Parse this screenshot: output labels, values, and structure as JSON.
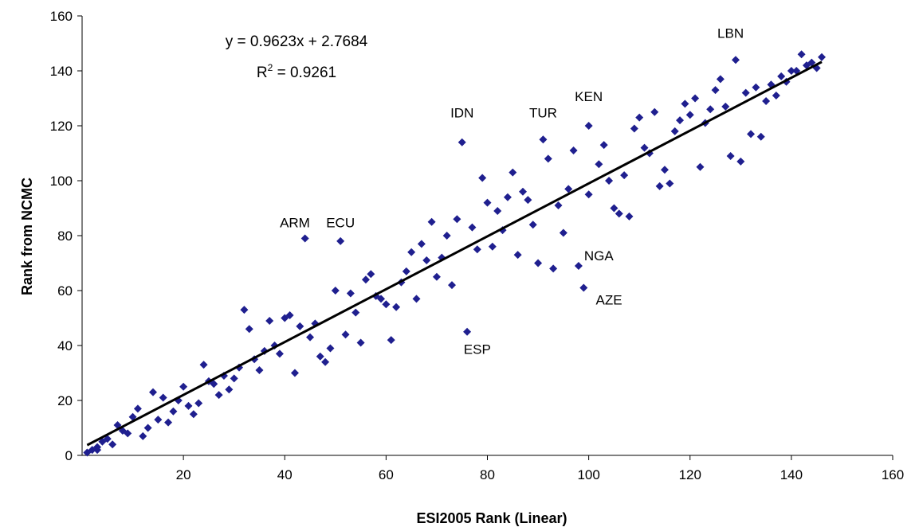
{
  "chart_data": {
    "type": "scatter",
    "title": "",
    "xlabel": "ESI2005 Rank (Linear)",
    "ylabel": "Rank from NCMC",
    "xlim": [
      0,
      160
    ],
    "ylim": [
      0,
      160
    ],
    "xticks": [
      20,
      40,
      60,
      80,
      100,
      120,
      140,
      160
    ],
    "yticks": [
      0,
      20,
      40,
      60,
      80,
      100,
      120,
      140,
      160
    ],
    "grid": false,
    "legend": "none",
    "marker_color": "#1f1f8f",
    "trendline": {
      "slope": 0.9623,
      "intercept": 2.7684,
      "equation_text": "y = 0.9623x + 2.7684",
      "r2_prefix": "R",
      "r2_sup": "2",
      "r2_value_text": " = 0.9261",
      "color": "#000000"
    },
    "annotations": [
      {
        "text": "LBN",
        "x": 128,
        "y": 152
      },
      {
        "text": "IDN",
        "x": 75,
        "y": 123
      },
      {
        "text": "TUR",
        "x": 91,
        "y": 123
      },
      {
        "text": "KEN",
        "x": 100,
        "y": 129
      },
      {
        "text": "ARM",
        "x": 42,
        "y": 83
      },
      {
        "text": "ECU",
        "x": 51,
        "y": 83
      },
      {
        "text": "NGA",
        "x": 102,
        "y": 71
      },
      {
        "text": "AZE",
        "x": 104,
        "y": 55
      },
      {
        "text": "ESP",
        "x": 78,
        "y": 37
      }
    ],
    "points": [
      [
        1,
        1
      ],
      [
        2,
        2
      ],
      [
        3,
        3
      ],
      [
        3,
        2
      ],
      [
        4,
        5
      ],
      [
        5,
        6
      ],
      [
        6,
        4
      ],
      [
        7,
        11
      ],
      [
        8,
        9
      ],
      [
        9,
        8
      ],
      [
        10,
        14
      ],
      [
        11,
        17
      ],
      [
        12,
        7
      ],
      [
        13,
        10
      ],
      [
        14,
        23
      ],
      [
        15,
        13
      ],
      [
        16,
        21
      ],
      [
        17,
        12
      ],
      [
        18,
        16
      ],
      [
        19,
        20
      ],
      [
        20,
        25
      ],
      [
        21,
        18
      ],
      [
        22,
        15
      ],
      [
        23,
        19
      ],
      [
        24,
        33
      ],
      [
        25,
        27
      ],
      [
        26,
        26
      ],
      [
        27,
        22
      ],
      [
        28,
        29
      ],
      [
        29,
        24
      ],
      [
        30,
        28
      ],
      [
        31,
        32
      ],
      [
        32,
        53
      ],
      [
        33,
        46
      ],
      [
        34,
        35
      ],
      [
        35,
        31
      ],
      [
        36,
        38
      ],
      [
        37,
        49
      ],
      [
        38,
        40
      ],
      [
        39,
        37
      ],
      [
        40,
        50
      ],
      [
        41,
        51
      ],
      [
        42,
        30
      ],
      [
        43,
        47
      ],
      [
        44,
        79
      ],
      [
        45,
        43
      ],
      [
        46,
        48
      ],
      [
        47,
        36
      ],
      [
        48,
        34
      ],
      [
        49,
        39
      ],
      [
        50,
        60
      ],
      [
        51,
        78
      ],
      [
        52,
        44
      ],
      [
        53,
        59
      ],
      [
        54,
        52
      ],
      [
        55,
        41
      ],
      [
        56,
        64
      ],
      [
        57,
        66
      ],
      [
        58,
        58
      ],
      [
        59,
        57
      ],
      [
        60,
        55
      ],
      [
        61,
        42
      ],
      [
        62,
        54
      ],
      [
        63,
        63
      ],
      [
        64,
        67
      ],
      [
        65,
        74
      ],
      [
        66,
        57
      ],
      [
        67,
        77
      ],
      [
        68,
        71
      ],
      [
        69,
        85
      ],
      [
        70,
        65
      ],
      [
        71,
        72
      ],
      [
        72,
        80
      ],
      [
        73,
        62
      ],
      [
        74,
        86
      ],
      [
        76,
        45
      ],
      [
        75,
        114
      ],
      [
        77,
        83
      ],
      [
        78,
        75
      ],
      [
        79,
        101
      ],
      [
        80,
        92
      ],
      [
        81,
        76
      ],
      [
        82,
        89
      ],
      [
        83,
        82
      ],
      [
        84,
        94
      ],
      [
        85,
        103
      ],
      [
        86,
        73
      ],
      [
        87,
        96
      ],
      [
        88,
        93
      ],
      [
        89,
        84
      ],
      [
        90,
        70
      ],
      [
        91,
        115
      ],
      [
        92,
        108
      ],
      [
        93,
        68
      ],
      [
        94,
        91
      ],
      [
        95,
        81
      ],
      [
        96,
        97
      ],
      [
        97,
        111
      ],
      [
        98,
        69
      ],
      [
        99,
        61
      ],
      [
        100,
        120
      ],
      [
        100,
        95
      ],
      [
        102,
        106
      ],
      [
        103,
        113
      ],
      [
        104,
        100
      ],
      [
        105,
        90
      ],
      [
        106,
        88
      ],
      [
        107,
        102
      ],
      [
        108,
        87
      ],
      [
        109,
        119
      ],
      [
        110,
        123
      ],
      [
        111,
        112
      ],
      [
        112,
        110
      ],
      [
        113,
        125
      ],
      [
        114,
        98
      ],
      [
        115,
        104
      ],
      [
        116,
        99
      ],
      [
        117,
        118
      ],
      [
        118,
        122
      ],
      [
        119,
        128
      ],
      [
        120,
        124
      ],
      [
        121,
        130
      ],
      [
        122,
        105
      ],
      [
        123,
        121
      ],
      [
        124,
        126
      ],
      [
        125,
        133
      ],
      [
        126,
        137
      ],
      [
        127,
        127
      ],
      [
        128,
        109
      ],
      [
        129,
        144
      ],
      [
        130,
        107
      ],
      [
        131,
        132
      ],
      [
        132,
        117
      ],
      [
        133,
        134
      ],
      [
        134,
        116
      ],
      [
        135,
        129
      ],
      [
        136,
        135
      ],
      [
        137,
        131
      ],
      [
        138,
        138
      ],
      [
        139,
        136
      ],
      [
        140,
        140
      ],
      [
        141,
        140
      ],
      [
        142,
        146
      ],
      [
        143,
        142
      ],
      [
        144,
        143
      ],
      [
        145,
        141
      ],
      [
        146,
        145
      ]
    ]
  }
}
